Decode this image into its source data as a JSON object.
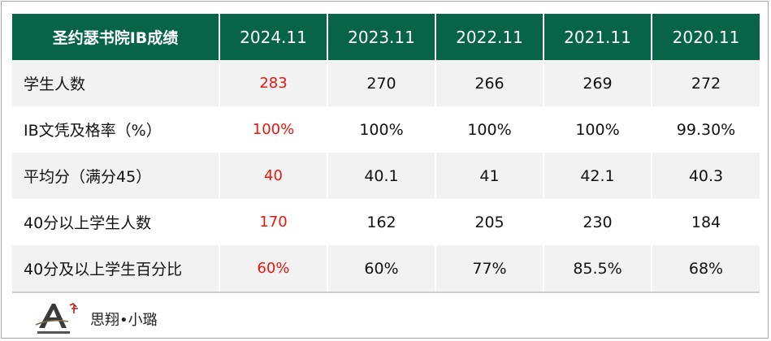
{
  "table": {
    "headers": [
      "圣约瑟书院IB成绩",
      "2024.11",
      "2023.11",
      "2022.11",
      "2021.11",
      "2020.11"
    ],
    "rows": [
      {
        "label": "学生人数",
        "values": [
          "283",
          "270",
          "266",
          "269",
          "272"
        ]
      },
      {
        "label": "IB文凭及格率（%）",
        "values": [
          "100%",
          "100%",
          "100%",
          "100%",
          "99.30%"
        ]
      },
      {
        "label": "平均分（满分45）",
        "values": [
          "40",
          "40.1",
          "41",
          "42.1",
          "40.3"
        ]
      },
      {
        "label": "40分以上学生人数",
        "values": [
          "170",
          "162",
          "205",
          "230",
          "184"
        ]
      },
      {
        "label": "40分及以上学生百分比",
        "values": [
          "60%",
          "60%",
          "77%",
          "85.5%",
          "68%"
        ]
      }
    ]
  },
  "brand": {
    "text": "思翔•小璐"
  },
  "colors": {
    "header_bg": "#076447",
    "highlight_text": "#e8160c",
    "row_alt_bg": "#f2f2f2"
  }
}
